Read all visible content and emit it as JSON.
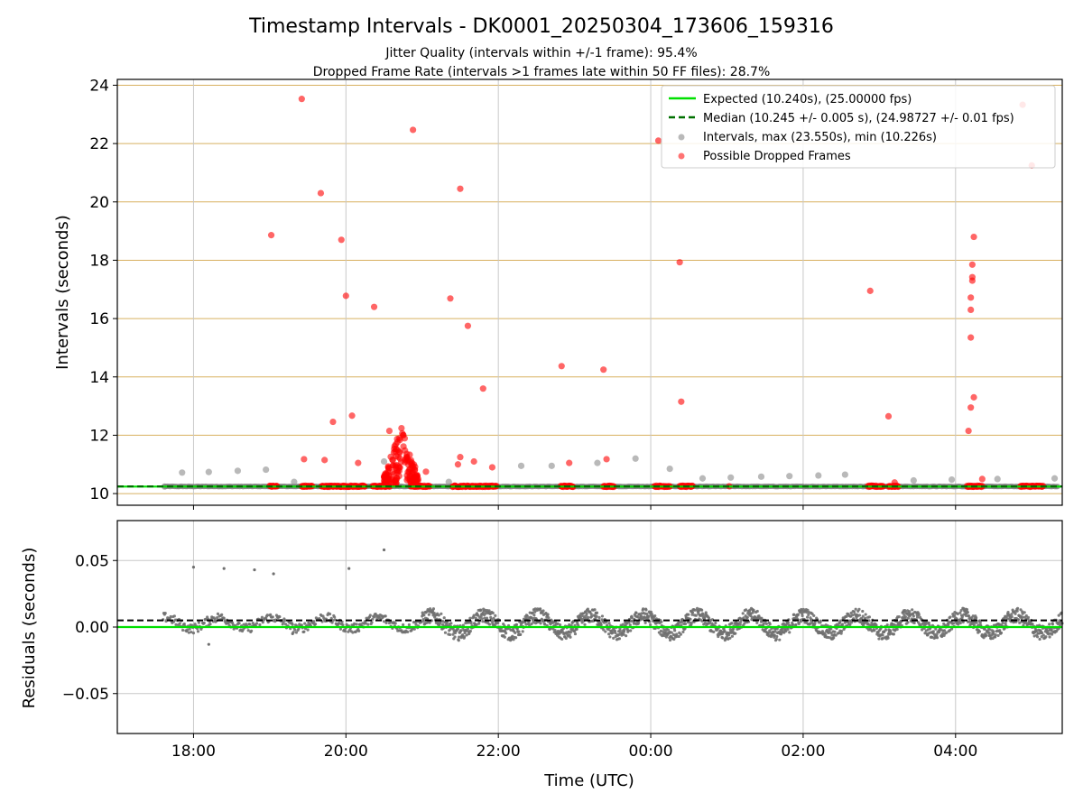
{
  "colors": {
    "expected": "#00e000",
    "median": "#007000",
    "intervals": "#808080",
    "dropped": "#ff0000",
    "hgrid_top": "#d8b060",
    "vgrid": "#c8c8c8",
    "residuals": "#707070"
  },
  "chart_data": [
    {
      "type": "scatter",
      "panel": "intervals",
      "title": "Timestamp Intervals - DK0001_20250304_173606_159316",
      "subtitle_1": "Jitter Quality (intervals within +/-1 frame): 95.4%",
      "subtitle_2": "Dropped Frame Rate (intervals >1 frames late within 50 FF files): 28.7%",
      "xlabel": "",
      "ylabel": "Intervals (seconds)",
      "x_unit": "hours since 00:00 UTC 2025-03-04",
      "xlim": [
        17.0,
        29.4
      ],
      "ylim": [
        9.6,
        24.2
      ],
      "yticks": [
        10,
        12,
        14,
        16,
        18,
        20,
        22,
        24
      ],
      "ytick_labels": [
        "10",
        "12",
        "14",
        "16",
        "18",
        "20",
        "22",
        "24"
      ],
      "grid": "horizontal lines colored, vertical gray",
      "legend_position": "top-right",
      "legend": [
        "Expected (10.240s), (25.00000 fps)",
        "Median (10.245 +/- 0.005 s), (24.98727 +/- 0.01 fps)",
        "Intervals, max (23.550s), min (10.226s)",
        "Possible Dropped Frames"
      ],
      "expected_value": 10.24,
      "median_value": 10.245,
      "intervals_points": [
        [
          17.62,
          10.24
        ],
        [
          17.85,
          10.72
        ],
        [
          18.2,
          10.74
        ],
        [
          18.58,
          10.78
        ],
        [
          18.95,
          10.82
        ],
        [
          19.32,
          10.4
        ],
        [
          20.5,
          11.1
        ],
        [
          21.35,
          10.4
        ],
        [
          22.3,
          10.95
        ],
        [
          22.7,
          10.95
        ],
        [
          23.3,
          11.05
        ],
        [
          23.8,
          11.2
        ],
        [
          24.25,
          10.85
        ],
        [
          24.68,
          10.52
        ],
        [
          25.05,
          10.55
        ],
        [
          25.45,
          10.58
        ],
        [
          25.82,
          10.6
        ],
        [
          26.2,
          10.62
        ],
        [
          26.55,
          10.65
        ],
        [
          27.45,
          10.45
        ],
        [
          27.95,
          10.48
        ],
        [
          28.55,
          10.5
        ],
        [
          29.3,
          10.52
        ]
      ],
      "dropped_points": [
        [
          19.02,
          18.86
        ],
        [
          19.42,
          23.53
        ],
        [
          19.45,
          11.18
        ],
        [
          19.67,
          20.3
        ],
        [
          19.72,
          11.15
        ],
        [
          19.83,
          12.46
        ],
        [
          19.94,
          18.7
        ],
        [
          20.0,
          16.78
        ],
        [
          20.08,
          12.67
        ],
        [
          20.16,
          11.05
        ],
        [
          20.37,
          16.4
        ],
        [
          20.57,
          12.15
        ],
        [
          20.88,
          22.47
        ],
        [
          21.05,
          10.75
        ],
        [
          21.37,
          16.69
        ],
        [
          21.5,
          20.45
        ],
        [
          21.5,
          11.25
        ],
        [
          21.47,
          11.0
        ],
        [
          21.6,
          15.75
        ],
        [
          21.68,
          11.1
        ],
        [
          21.8,
          13.6
        ],
        [
          21.92,
          10.9
        ],
        [
          22.83,
          14.37
        ],
        [
          22.93,
          11.05
        ],
        [
          23.38,
          14.25
        ],
        [
          23.42,
          11.18
        ],
        [
          24.1,
          22.1
        ],
        [
          24.38,
          17.93
        ],
        [
          24.4,
          13.15
        ],
        [
          24.52,
          10.25
        ],
        [
          25.03,
          10.25
        ],
        [
          26.88,
          16.95
        ],
        [
          27.12,
          12.65
        ],
        [
          27.2,
          10.38
        ],
        [
          28.17,
          12.15
        ],
        [
          28.2,
          12.95
        ],
        [
          28.2,
          15.35
        ],
        [
          28.2,
          16.3
        ],
        [
          28.2,
          16.72
        ],
        [
          28.22,
          17.42
        ],
        [
          28.22,
          17.85
        ],
        [
          28.22,
          17.3
        ],
        [
          28.24,
          18.8
        ],
        [
          28.24,
          13.3
        ],
        [
          28.35,
          10.5
        ],
        [
          28.88,
          23.33
        ],
        [
          29.0,
          21.25
        ]
      ],
      "dropped_clusters": [
        {
          "x_start": 19.0,
          "x_end": 19.1,
          "y": 10.25
        },
        {
          "x_start": 19.42,
          "x_end": 19.56,
          "y": 10.25
        },
        {
          "x_start": 19.68,
          "x_end": 20.25,
          "y": 10.25
        },
        {
          "x_start": 20.35,
          "x_end": 20.58,
          "y": 10.25
        },
        {
          "x_start": 20.85,
          "x_end": 21.1,
          "y": 10.25
        },
        {
          "x_start": 21.4,
          "x_end": 21.98,
          "y": 10.25
        },
        {
          "x_start": 22.82,
          "x_end": 22.98,
          "y": 10.25
        },
        {
          "x_start": 23.38,
          "x_end": 23.52,
          "y": 10.25
        },
        {
          "x_start": 24.05,
          "x_end": 24.25,
          "y": 10.25
        },
        {
          "x_start": 24.38,
          "x_end": 24.55,
          "y": 10.25
        },
        {
          "x_start": 26.85,
          "x_end": 27.05,
          "y": 10.25
        },
        {
          "x_start": 27.12,
          "x_end": 27.25,
          "y": 10.25
        },
        {
          "x_start": 28.15,
          "x_end": 28.35,
          "y": 10.25
        },
        {
          "x_start": 28.85,
          "x_end": 29.15,
          "y": 10.25
        }
      ],
      "dropped_burst": {
        "x_start": 20.5,
        "x_end": 20.95,
        "y_min": 10.3,
        "y_max": 12.3
      }
    },
    {
      "type": "scatter",
      "panel": "residuals",
      "xlabel": "Time (UTC)",
      "ylabel": "Residuals (seconds)",
      "x_unit": "hours since 00:00 UTC 2025-03-04",
      "xlim": [
        17.0,
        29.4
      ],
      "ylim": [
        -0.08,
        0.08
      ],
      "yticks": [
        0.05,
        0.0,
        -0.05
      ],
      "ytick_labels": [
        "0.05",
        "0.00",
        "−0.05"
      ],
      "xticks": [
        18,
        20,
        22,
        24,
        26,
        28
      ],
      "xtick_labels": [
        "18:00",
        "20:00",
        "22:00",
        "00:00",
        "02:00",
        "04:00"
      ],
      "grid": "both",
      "expected_residual": 0.0,
      "median_residual": 0.005,
      "outliers": [
        [
          18.0,
          0.045
        ],
        [
          18.4,
          0.044
        ],
        [
          18.8,
          0.043
        ],
        [
          19.05,
          0.04
        ],
        [
          20.04,
          0.044
        ],
        [
          20.5,
          0.058
        ],
        [
          18.2,
          -0.013
        ],
        [
          19.3,
          -0.005
        ]
      ],
      "bands": [
        {
          "x_start": 17.6,
          "x_end": 21.0,
          "center": 0.003,
          "spread": 0.007
        },
        {
          "x_start": 21.0,
          "x_end": 29.4,
          "center": 0.002,
          "spread": 0.011
        }
      ]
    }
  ]
}
